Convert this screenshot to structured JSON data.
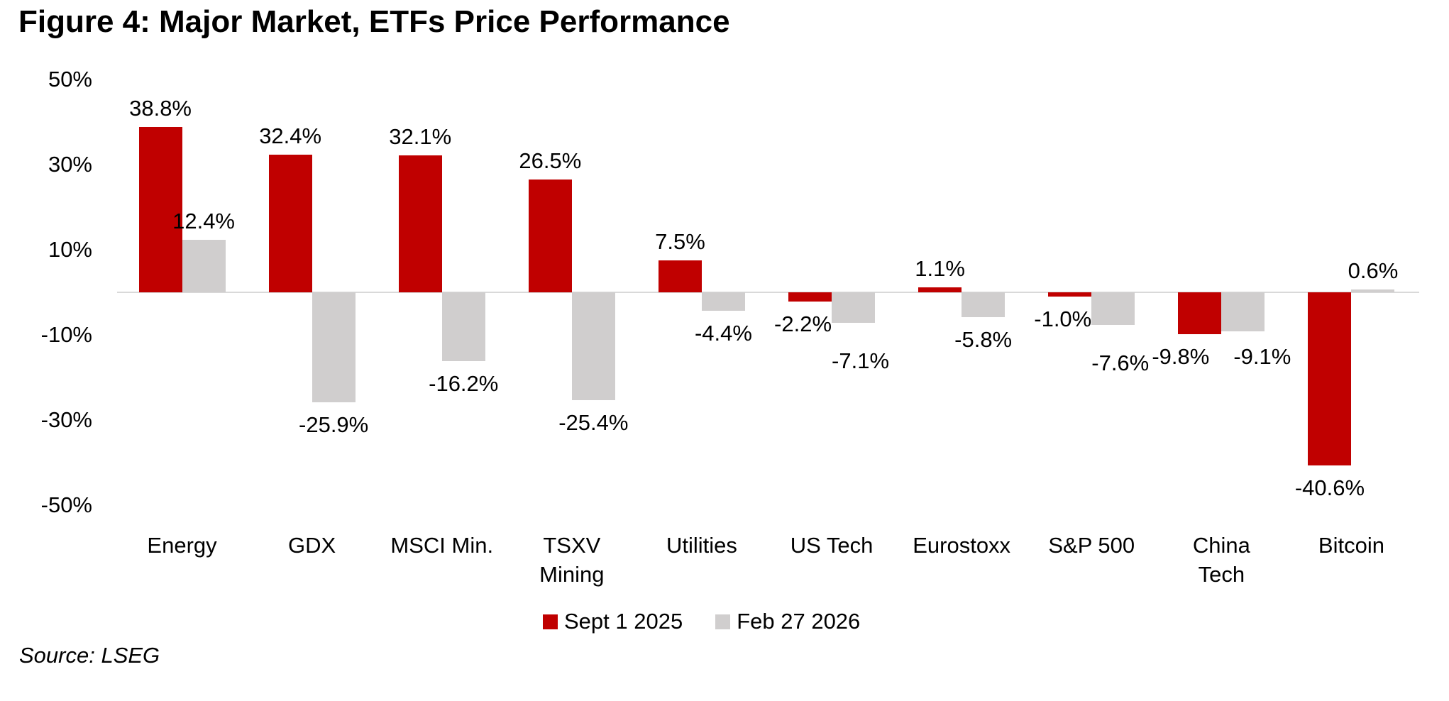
{
  "figure_title": "Figure 4: Major Market, ETFs Price Performance",
  "source_note": "Source: LSEG",
  "colors": {
    "series_sept": "#c00000",
    "series_feb": "#d0cece",
    "baseline": "#d9d9d9",
    "text": "#000000",
    "background": "#ffffff"
  },
  "legend": {
    "items": [
      {
        "label": "Sept 1 2025",
        "color": "#c00000"
      },
      {
        "label": "Feb 27 2026",
        "color": "#d0cece"
      }
    ]
  },
  "chart_data": {
    "type": "bar",
    "title": "Figure 4: Major Market, ETFs Price Performance",
    "xlabel": "",
    "ylabel": "",
    "ylim": [
      -50,
      50
    ],
    "grid": false,
    "legend_position": "bottom",
    "y_ticks": [
      50,
      30,
      10,
      -10,
      -30,
      -50
    ],
    "y_tick_labels": [
      "50%",
      "30%",
      "10%",
      "-10%",
      "-30%",
      "-50%"
    ],
    "categories": [
      "Energy",
      "GDX",
      "MSCI Min.",
      "TSXV Mining",
      "Utilities",
      "US Tech",
      "Eurostoxx",
      "S&P 500",
      "China Tech",
      "Bitcoin"
    ],
    "category_display": [
      "Energy",
      "GDX",
      "MSCI Min.",
      "TSXV\nMining",
      "Utilities",
      "US Tech",
      "Eurostoxx",
      "S&P 500",
      "China\nTech",
      "Bitcoin"
    ],
    "series": [
      {
        "name": "Sept 1 2025",
        "color": "#c00000",
        "values": [
          38.8,
          32.4,
          32.1,
          26.5,
          7.5,
          -2.2,
          1.1,
          -1.0,
          -9.8,
          -40.6
        ],
        "labels": [
          "38.8%",
          "32.4%",
          "32.1%",
          "26.5%",
          "7.5%",
          "-2.2%",
          "1.1%",
          "-1.0%",
          "-9.8%",
          "-40.6%"
        ]
      },
      {
        "name": "Feb 27 2026",
        "color": "#d0cece",
        "values": [
          12.4,
          -25.9,
          -16.2,
          -25.4,
          -4.4,
          -7.1,
          -5.8,
          -7.6,
          -9.1,
          0.6
        ],
        "labels": [
          "12.4%",
          "-25.9%",
          "-16.2%",
          "-25.4%",
          "-4.4%",
          "-7.1%",
          "-5.8%",
          "-7.6%",
          "-9.1%",
          "0.6%"
        ]
      }
    ]
  }
}
